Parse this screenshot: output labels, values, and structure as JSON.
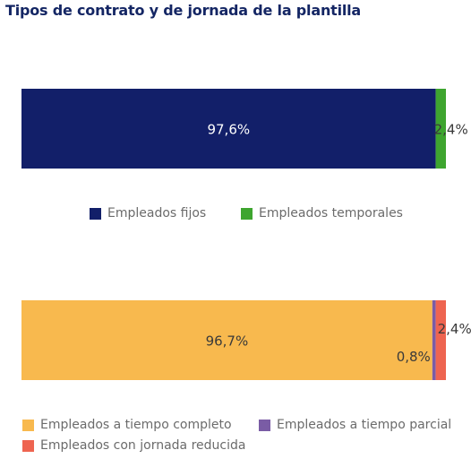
{
  "title": "Tipos de contrato y de jornada de la plantilla",
  "chart_data": [
    {
      "type": "bar",
      "orientation": "horizontal",
      "stacked": true,
      "series": [
        {
          "name": "Empleados fijos",
          "value": 97.6,
          "label": "97,6%",
          "color": "#121f69"
        },
        {
          "name": "Empleados temporales",
          "value": 2.4,
          "label": "2,4%",
          "color": "#3ea52f"
        }
      ],
      "legend": "below"
    },
    {
      "type": "bar",
      "orientation": "horizontal",
      "stacked": true,
      "series": [
        {
          "name": "Empleados a tiempo completo",
          "value": 96.7,
          "label": "96,7%",
          "color": "#f8b94e"
        },
        {
          "name": "Empleados a tiempo parcial",
          "value": 0.8,
          "label": "0,8%",
          "color": "#7a5ca5"
        },
        {
          "name": "Empleados con jornada reducida",
          "value": 2.4,
          "label": "2,4%",
          "color": "#ee6450"
        }
      ],
      "legend": "below"
    }
  ]
}
